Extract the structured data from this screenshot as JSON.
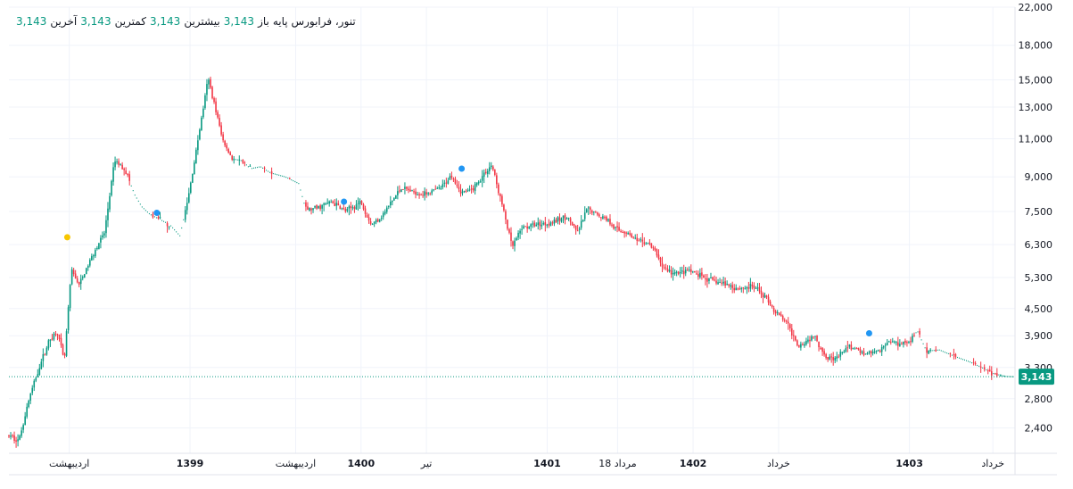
{
  "legend": {
    "symbol": "تنور، فرابورس پایه",
    "open_label": "باز",
    "open": "3,143",
    "high_label": "بیشترین",
    "high": "3,143",
    "low_label": "کمترین",
    "low": "3,143",
    "close_label": "آخرین",
    "close": "3,143"
  },
  "colors": {
    "up": "#089981",
    "down": "#f23645",
    "grid": "#f0f3fa",
    "axis_text": "#131722",
    "last": "#089981"
  },
  "chart_data": {
    "type": "candlestick",
    "title": "تنور، فرابورس پایه",
    "y_scale": "log",
    "ylim": [
      2100,
      22000
    ],
    "y_ticks": [
      2400,
      2800,
      3300,
      3900,
      4500,
      5300,
      6300,
      7500,
      9000,
      11000,
      13000,
      15000,
      18000,
      22000
    ],
    "y_tick_labels": [
      "2,400",
      "2,800",
      "3,300",
      "3,900",
      "4,500",
      "5,300",
      "6,300",
      "7,500",
      "9,000",
      "11,000",
      "13,000",
      "15,000",
      "18,000",
      "22,000"
    ],
    "x_ticks": [
      {
        "t": 0.06,
        "label": "اردیبهشت",
        "bold": false
      },
      {
        "t": 0.18,
        "label": "1399",
        "bold": true
      },
      {
        "t": 0.285,
        "label": "اردیبهشت",
        "bold": false
      },
      {
        "t": 0.35,
        "label": "1400",
        "bold": true
      },
      {
        "t": 0.415,
        "label": "تیر",
        "bold": false
      },
      {
        "t": 0.535,
        "label": "1401",
        "bold": true
      },
      {
        "t": 0.605,
        "label": "18 مرداد",
        "bold": false
      },
      {
        "t": 0.68,
        "label": "1402",
        "bold": true
      },
      {
        "t": 0.765,
        "label": "خرداد",
        "bold": false
      },
      {
        "t": 0.895,
        "label": "1403",
        "bold": true
      },
      {
        "t": 0.978,
        "label": "خرداد",
        "bold": false
      }
    ],
    "price_path": [
      [
        0.0,
        2300
      ],
      [
        0.01,
        2250
      ],
      [
        0.02,
        2800
      ],
      [
        0.03,
        3300
      ],
      [
        0.04,
        3800
      ],
      [
        0.048,
        4000
      ],
      [
        0.055,
        3400
      ],
      [
        0.062,
        5500
      ],
      [
        0.07,
        5100
      ],
      [
        0.085,
        6100
      ],
      [
        0.095,
        6700
      ],
      [
        0.105,
        9800
      ],
      [
        0.115,
        9400
      ],
      [
        0.125,
        8200
      ],
      [
        0.132,
        7700
      ],
      [
        0.14,
        7400
      ],
      [
        0.16,
        7000
      ],
      [
        0.17,
        6600
      ],
      [
        0.178,
        8000
      ],
      [
        0.188,
        11000
      ],
      [
        0.198,
        15100
      ],
      [
        0.205,
        13000
      ],
      [
        0.212,
        11000
      ],
      [
        0.222,
        9900
      ],
      [
        0.232,
        9800
      ],
      [
        0.24,
        9400
      ],
      [
        0.25,
        9500
      ],
      [
        0.26,
        9200
      ],
      [
        0.275,
        9000
      ],
      [
        0.288,
        8700
      ],
      [
        0.295,
        7600
      ],
      [
        0.305,
        7600
      ],
      [
        0.32,
        7900
      ],
      [
        0.335,
        7500
      ],
      [
        0.35,
        7900
      ],
      [
        0.36,
        7000
      ],
      [
        0.37,
        7300
      ],
      [
        0.39,
        8500
      ],
      [
        0.41,
        8200
      ],
      [
        0.43,
        8500
      ],
      [
        0.44,
        9100
      ],
      [
        0.45,
        8300
      ],
      [
        0.46,
        8400
      ],
      [
        0.47,
        9000
      ],
      [
        0.48,
        9600
      ],
      [
        0.485,
        8600
      ],
      [
        0.492,
        7500
      ],
      [
        0.5,
        6200
      ],
      [
        0.51,
        6900
      ],
      [
        0.525,
        7000
      ],
      [
        0.54,
        7100
      ],
      [
        0.555,
        7300
      ],
      [
        0.565,
        6700
      ],
      [
        0.575,
        7600
      ],
      [
        0.585,
        7400
      ],
      [
        0.595,
        7200
      ],
      [
        0.605,
        6800
      ],
      [
        0.615,
        6700
      ],
      [
        0.625,
        6400
      ],
      [
        0.635,
        6350
      ],
      [
        0.642,
        6100
      ],
      [
        0.65,
        5600
      ],
      [
        0.66,
        5400
      ],
      [
        0.675,
        5500
      ],
      [
        0.69,
        5300
      ],
      [
        0.7,
        5200
      ],
      [
        0.715,
        5100
      ],
      [
        0.725,
        5000
      ],
      [
        0.74,
        5050
      ],
      [
        0.752,
        4800
      ],
      [
        0.762,
        4400
      ],
      [
        0.772,
        4200
      ],
      [
        0.785,
        3700
      ],
      [
        0.8,
        3900
      ],
      [
        0.812,
        3500
      ],
      [
        0.822,
        3450
      ],
      [
        0.835,
        3700
      ],
      [
        0.85,
        3550
      ],
      [
        0.865,
        3600
      ],
      [
        0.875,
        3800
      ],
      [
        0.885,
        3750
      ],
      [
        0.895,
        3800
      ],
      [
        0.903,
        4000
      ],
      [
        0.912,
        3600
      ],
      [
        0.925,
        3620
      ],
      [
        0.94,
        3500
      ],
      [
        0.955,
        3400
      ],
      [
        0.967,
        3300
      ],
      [
        0.978,
        3200
      ],
      [
        0.99,
        3150
      ],
      [
        1.0,
        3143
      ]
    ],
    "dotted_segments": [
      [
        0.12,
        0.175
      ],
      [
        0.225,
        0.295
      ],
      [
        0.9,
        1.0
      ]
    ],
    "event_markers": [
      {
        "t": 0.058,
        "price": 6550,
        "color": "#f7c600"
      },
      {
        "t": 0.147,
        "price": 7450,
        "color": "#2196f3"
      },
      {
        "t": 0.333,
        "price": 7900,
        "color": "#2196f3"
      },
      {
        "t": 0.45,
        "price": 9400,
        "color": "#2196f3"
      },
      {
        "t": 0.855,
        "price": 3950,
        "color": "#2196f3"
      }
    ],
    "last_price": 3143,
    "last_price_label": "3,143"
  }
}
